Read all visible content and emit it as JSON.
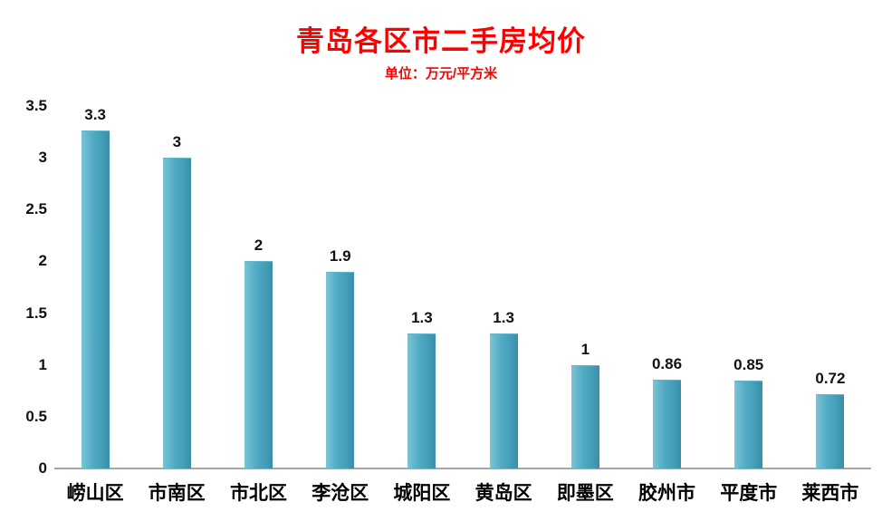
{
  "header": {
    "title": "青岛各区市二手房均价",
    "subtitle": "单位：万元/平方米"
  },
  "colors": {
    "title": "#ff0000",
    "bar": "#4aa8c2",
    "axis_line": "#a6a6a6",
    "text": "#111111",
    "background": "#ffffff"
  },
  "chart_data": {
    "type": "bar",
    "title": "青岛各区市二手房均价",
    "subtitle": "单位：万元/平方米",
    "categories": [
      "崂山区",
      "市南区",
      "市北区",
      "李沧区",
      "城阳区",
      "黄岛区",
      "即墨区",
      "胶州市",
      "平度市",
      "莱西市"
    ],
    "values": [
      3.3,
      3,
      2,
      1.9,
      1.3,
      1.3,
      1,
      0.86,
      0.85,
      0.72
    ],
    "value_labels": [
      "3.3",
      "3",
      "2",
      "1.9",
      "1.3",
      "1.3",
      "1",
      "0.86",
      "0.85",
      "0.72"
    ],
    "xlabel": "",
    "ylabel": "",
    "ylim": [
      0,
      3.5
    ],
    "yticks": [
      0,
      0.5,
      1,
      1.5,
      2,
      2.5,
      3,
      3.5
    ],
    "ytick_labels": [
      "0",
      "0.5",
      "1",
      "1.5",
      "2",
      "2.5",
      "3",
      "3.5"
    ],
    "grid": false,
    "legend": false,
    "bar_color": "#4aa8c2",
    "title_color": "#ff0000"
  }
}
